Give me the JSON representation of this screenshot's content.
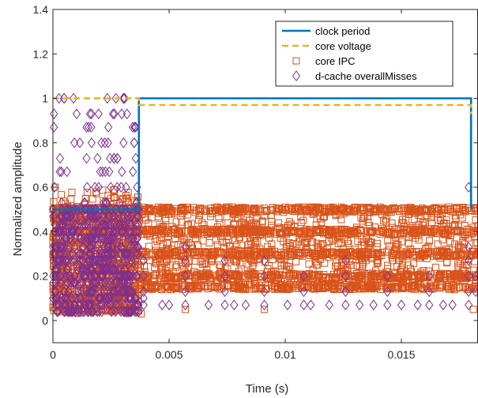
{
  "chart_data": {
    "type": "scatter",
    "xlabel": "Time (s)",
    "ylabel": "Normalized amplitude",
    "xlim": [
      0,
      0.0183
    ],
    "ylim": [
      -0.1,
      1.4
    ],
    "x_ticks": [
      0,
      0.005,
      0.01,
      0.015
    ],
    "x_tick_labels": [
      "0",
      "0.005",
      "0.01",
      "0.015"
    ],
    "y_ticks": [
      0,
      0.2,
      0.4,
      0.6,
      0.8,
      1.0,
      1.2,
      1.4
    ],
    "y_tick_labels": [
      "0",
      "0.2",
      "0.4",
      "0.6",
      "0.8",
      "1",
      "1.2",
      "1.4"
    ],
    "grid": false,
    "legend_position": "top-right",
    "series": [
      {
        "name": "clock period",
        "kind": "line",
        "style": "solid",
        "color": "#0072bd",
        "x": [
          0,
          0.0037,
          0.0037,
          0.018,
          0.018
        ],
        "y": [
          0.5,
          0.5,
          1.0,
          1.0,
          0.5
        ]
      },
      {
        "name": "core voltage",
        "kind": "line",
        "style": "dashed",
        "color": "#edb120",
        "x": [
          0,
          0.0037,
          0.0037,
          0.018,
          0.018
        ],
        "y": [
          1.0,
          1.0,
          0.97,
          0.97,
          0.93
        ]
      },
      {
        "name": "core IPC",
        "kind": "scatter",
        "marker": "square",
        "color": "#d95319",
        "phases": [
          {
            "x_range": [
              0,
              0.0037
            ],
            "y_range": [
              0.03,
              0.6
            ],
            "bands": [
              0.05,
              0.1,
              0.15,
              0.2,
              0.25,
              0.3,
              0.35,
              0.4,
              0.45,
              0.5
            ]
          },
          {
            "x_range": [
              0.0037,
              0.0183
            ],
            "y_range": [
              0.14,
              0.51
            ],
            "bands": [
              0.15,
              0.2,
              0.3,
              0.4,
              0.5
            ]
          }
        ],
        "outliers": [
          {
            "x": 0.0001,
            "y": 0.6
          },
          {
            "x": 0.0038,
            "y": 0.03
          },
          {
            "x": 0.0057,
            "y": 0.05
          },
          {
            "x": 0.0091,
            "y": 0.05
          },
          {
            "x": 0.0181,
            "y": 0.05
          }
        ]
      },
      {
        "name": "d-cache overallMisses",
        "kind": "scatter",
        "marker": "diamond",
        "color": "#7e2f8e",
        "phases": [
          {
            "x_range": [
              0,
              0.0037
            ],
            "levels": [
              0.04,
              0.07,
              0.1,
              0.13,
              0.17,
              0.2,
              0.23,
              0.27,
              0.3,
              0.33,
              0.37,
              0.4,
              0.43,
              0.47,
              0.5,
              0.53,
              0.6,
              0.67,
              0.73,
              0.8,
              0.87,
              0.93,
              1.0
            ]
          }
        ],
        "columns": [
          {
            "x": 0.0039,
            "levels": [
              0.07,
              0.1,
              0.13,
              0.2,
              0.27
            ]
          },
          {
            "x": 0.0057,
            "levels": [
              0.07,
              0.13,
              0.2,
              0.27,
              0.33
            ]
          },
          {
            "x": 0.0074,
            "levels": [
              0.07,
              0.13,
              0.2,
              0.27
            ]
          },
          {
            "x": 0.0091,
            "levels": [
              0.07,
              0.13,
              0.2,
              0.27
            ]
          },
          {
            "x": 0.0108,
            "levels": [
              0.07,
              0.13,
              0.2
            ]
          },
          {
            "x": 0.0126,
            "levels": [
              0.07,
              0.13,
              0.2,
              0.27
            ]
          },
          {
            "x": 0.0144,
            "levels": [
              0.07,
              0.13,
              0.2
            ]
          },
          {
            "x": 0.0162,
            "levels": [
              0.07,
              0.13,
              0.2
            ]
          },
          {
            "x": 0.0179,
            "levels": [
              0.07,
              0.13,
              0.2,
              0.27,
              0.33
            ]
          }
        ],
        "scattered": [
          {
            "x": 0.0047,
            "y": 0.07
          },
          {
            "x": 0.005,
            "y": 0.07
          },
          {
            "x": 0.0067,
            "y": 0.07
          },
          {
            "x": 0.0078,
            "y": 0.07
          },
          {
            "x": 0.0083,
            "y": 0.07
          },
          {
            "x": 0.0101,
            "y": 0.07
          },
          {
            "x": 0.0111,
            "y": 0.07
          },
          {
            "x": 0.0119,
            "y": 0.07
          },
          {
            "x": 0.0132,
            "y": 0.07
          },
          {
            "x": 0.0138,
            "y": 0.07
          },
          {
            "x": 0.015,
            "y": 0.07
          },
          {
            "x": 0.0157,
            "y": 0.07
          },
          {
            "x": 0.0168,
            "y": 0.07
          },
          {
            "x": 0.0172,
            "y": 0.07
          },
          {
            "x": 0.0179,
            "y": 0.6
          },
          {
            "x": 0.0182,
            "y": 0.13
          },
          {
            "x": 0.0182,
            "y": 0.2
          }
        ]
      }
    ]
  }
}
